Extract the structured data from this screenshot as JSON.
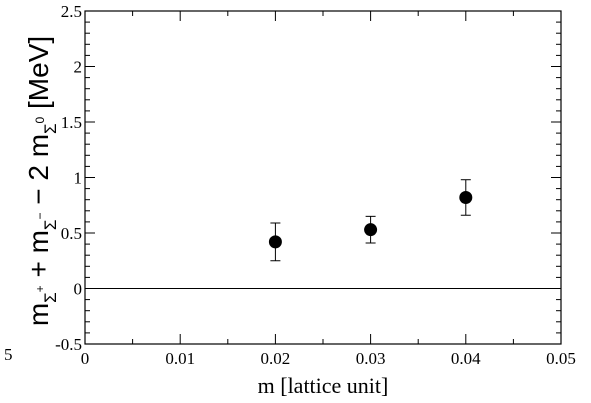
{
  "chart_data": {
    "type": "scatter",
    "xlabel": "m [lattice unit]",
    "ylabel_parts": {
      "m1": "m",
      "sub1": "Σ",
      "sup1": "+",
      "plus": " + ",
      "m2": "m",
      "sub2": "Σ",
      "sup2": "−",
      "minus": " − 2 ",
      "m3": "m",
      "sub3": "Σ",
      "sup3": "0",
      "unit": " [MeV]"
    },
    "xlim": [
      0,
      0.05
    ],
    "ylim": [
      -0.5,
      2.5
    ],
    "x_ticks": [
      0,
      0.01,
      0.02,
      0.03,
      0.04,
      0.05
    ],
    "x_tick_labels": [
      "0",
      "0.01",
      "0.02",
      "0.03",
      "0.04",
      "0.05"
    ],
    "y_ticks": [
      -0.5,
      0,
      0.5,
      1,
      1.5,
      2,
      2.5
    ],
    "y_tick_labels": [
      "-0.5",
      "0",
      "0.5",
      "1",
      "1.5",
      "2",
      "2.5"
    ],
    "left_edge_label": "5",
    "reference_line_y": 0,
    "series": [
      {
        "points": [
          {
            "x": 0.02,
            "y": 0.42,
            "err": 0.17
          },
          {
            "x": 0.03,
            "y": 0.53,
            "err": 0.12
          },
          {
            "x": 0.04,
            "y": 0.82,
            "err": 0.16
          }
        ]
      }
    ],
    "grid": false,
    "marker_color": "#000000"
  }
}
